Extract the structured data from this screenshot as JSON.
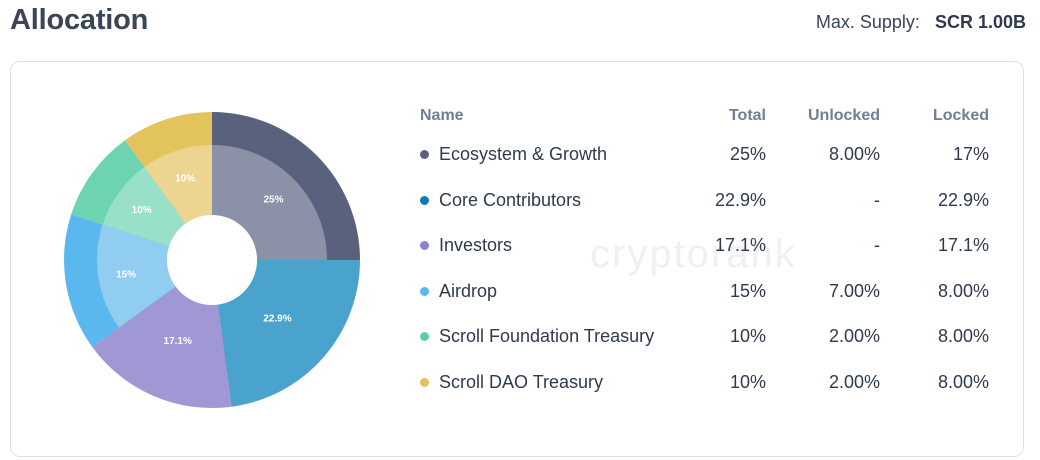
{
  "header": {
    "title": "Allocation",
    "supply_label": "Max. Supply:",
    "supply_value": "SCR 1.00B"
  },
  "watermark": "cryptorank",
  "table": {
    "columns": [
      "Name",
      "Total",
      "Unlocked",
      "Locked"
    ],
    "rows": [
      {
        "name": "Ecosystem & Growth",
        "total": "25%",
        "unlocked": "8.00%",
        "locked": "17%",
        "color": "#5a617d"
      },
      {
        "name": "Core Contributors",
        "total": "22.9%",
        "unlocked": "-",
        "locked": "22.9%",
        "color": "#0d7bb3"
      },
      {
        "name": "Investors",
        "total": "17.1%",
        "unlocked": "-",
        "locked": "17.1%",
        "color": "#8f80cc"
      },
      {
        "name": "Airdrop",
        "total": "15%",
        "unlocked": "7.00%",
        "locked": "8.00%",
        "color": "#5bb8ee"
      },
      {
        "name": "Scroll Foundation Treasury",
        "total": "10%",
        "unlocked": "2.00%",
        "locked": "8.00%",
        "color": "#5ccfa4"
      },
      {
        "name": "Scroll DAO Treasury",
        "total": "10%",
        "unlocked": "2.00%",
        "locked": "8.00%",
        "color": "#e3c35c"
      }
    ]
  },
  "chart_data": {
    "type": "pie",
    "variant": "donut-with-unlocked-inner-ring",
    "categories": [
      "Ecosystem & Growth",
      "Core Contributors",
      "Investors",
      "Airdrop",
      "Scroll Foundation Treasury",
      "Scroll DAO Treasury"
    ],
    "values": [
      25,
      22.9,
      17.1,
      15,
      10,
      10
    ],
    "labels": [
      "25%",
      "22.9%",
      "17.1%",
      "15%",
      "10%",
      "10%"
    ],
    "series": [
      {
        "name": "Total",
        "values": [
          25,
          22.9,
          17.1,
          15,
          10,
          10
        ]
      },
      {
        "name": "Unlocked",
        "values": [
          8,
          0,
          0,
          7,
          2,
          2
        ]
      }
    ],
    "outer_colors": [
      "#5a617d",
      "#4aa3cc",
      "#a097d5",
      "#5bb8ee",
      "#6ed3b0",
      "#e3c35c"
    ],
    "inner_colors": [
      "#8b91a7",
      "#4aa3cc",
      "#a097d5",
      "#90cdf1",
      "#99e0c8",
      "#ebd591"
    ],
    "start_angle": "top",
    "direction": "clockwise"
  }
}
